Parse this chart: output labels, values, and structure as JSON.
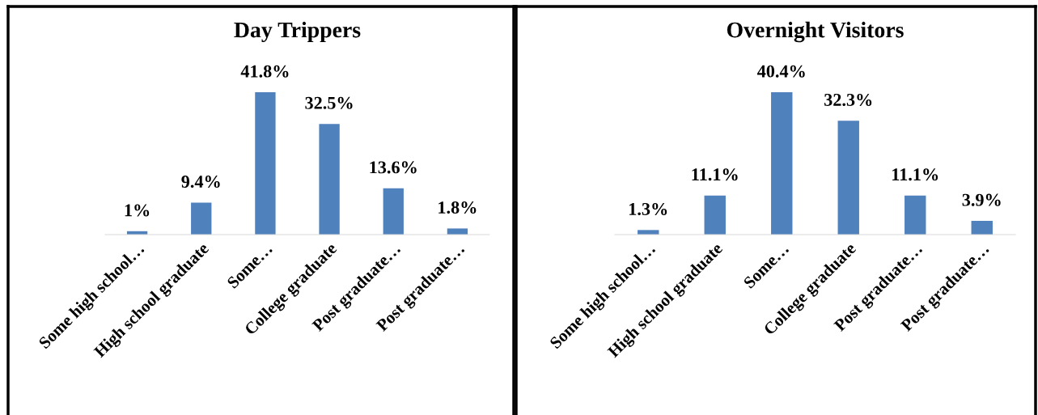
{
  "chart_data": [
    {
      "type": "bar",
      "title": "Day Trippers",
      "categories": [
        "Some high school…",
        "High school graduate",
        "Some…",
        "College graduate",
        "Post graduate…",
        "Post graduate…"
      ],
      "values": [
        1,
        9.4,
        41.8,
        32.5,
        13.6,
        1.8
      ],
      "color": "#4f81bd",
      "value_labels": [
        "1%",
        "9.4%",
        "41.8%",
        "32.5%",
        "13.6%",
        "1.8%"
      ],
      "grid": false,
      "legend": false
    },
    {
      "type": "bar",
      "title": "Overnight Visitors",
      "categories": [
        "Some high school…",
        "High school graduate",
        "Some…",
        "College graduate",
        "Post graduate…",
        "Post graduate…"
      ],
      "values": [
        1.3,
        11.1,
        40.4,
        32.3,
        11.1,
        3.9
      ],
      "color": "#4f81bd",
      "value_labels": [
        "1.3%",
        "11.1%",
        "40.4%",
        "32.3%",
        "11.1%",
        "3.9%"
      ],
      "grid": false,
      "legend": false
    }
  ]
}
